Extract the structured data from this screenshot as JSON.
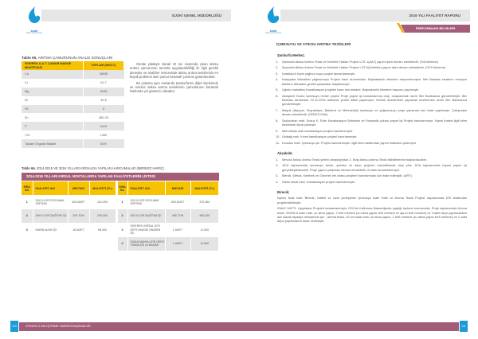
{
  "left_page": {
    "logo_text": "suski",
    "logo_subtext": "GENEL MÜDÜRLÜĞÜ",
    "header": "SUSKİ GENEL MÜDÜRLÜĞÜ",
    "table65": {
      "caption_bold": "Tablo 65.",
      "caption": "ARITMA ÇAMURUNUN ANALİZ SONUÇLARI",
      "headers": [
        "SİVEREK A.A.T. ÇAMUR MADDE MUHTEVASI",
        "TOPLAM (MG/LT)"
      ],
      "rows": [
        [
          "Ca",
          "28935"
        ],
        [
          "Cr",
          "91,7"
        ],
        [
          "Mg",
          "6105"
        ],
        [
          "Ni",
          "49,8"
        ],
        [
          "Pb",
          "0"
        ],
        [
          "Zn",
          "382,25"
        ],
        [
          "P",
          "3419"
        ],
        [
          "T-N",
          "1490"
        ],
        [
          "Toplam Organik Madde",
          "51%"
        ]
      ]
    },
    "paragraphs": [
      "Günde yaklaşık olarak 10 ton civarında çıkan atıksu arıtma çamurunun tarımda uygulanabilirliği ile ilgili gerekli deneyler ve analizler neticesinde atıksu arıtma tesislerinin en büyük problemi olan çamur bertarafı çözüme götürülecektir.",
      "Bu çalışma aynı zamanda Şanlıurfa'nın diğer ilçelerinde ve merkez atıksu arıtma tesislerinin çamurlarının bertarafı hakkında yol gösterici olacaktır."
    ],
    "table66": {
      "caption_bold": "Tablo 66.",
      "caption": "2014-2015 VE 2016 YILLARI KIRSALDA YAPILAN HARCAMALAR (MERKEZ HARİÇ)",
      "title": "2014-2016 YILLARI KIRSAL NOKTALARDA YAPILAN FAALİYETLERİN LİSTESİ",
      "headers": [
        "SIRA NO",
        "FAALİYET ADI",
        "MİKTARI",
        "MALİYETİ (TL)",
        "SIRA NO",
        "FAALİYET ADI",
        "MİKTARI",
        "MALİYETİ (TL)"
      ],
      "left_rows": [
        [
          "1",
          "SIVI KLOR DOZLAMA SİSTEMİ",
          "400 ADET",
          "151,000"
        ],
        [
          "2",
          "SIVI KLOR DAĞITIM İŞİ",
          "200 TON",
          "200,000"
        ],
        [
          "3",
          "KABİN ALIMI İŞİ",
          "36 ADET",
          "68,400"
        ]
      ],
      "right_rows": [
        [
          "1",
          "SIVI KLOR DOZLAMA SİSTEMİ",
          "503 ADET",
          "370,960"
        ],
        [
          "2",
          "SIVI KLOR DAĞITIM İŞİ",
          "480 TON",
          "480,000"
        ],
        [
          "3",
          "SİVEREK KIRSAL KÖY DEPO BAKIM ONARIM İŞİ",
          "1 ADET",
          "11,530"
        ],
        [
          "4",
          "KISAS MAHALLESİ DEPO TEMİZLİĞİ ve BAKIMI",
          "1 ADET",
          "11,800"
        ]
      ]
    },
    "footer": "STRATEJİ GELİŞTİRME DAİRESİ BAŞKANLIĞI",
    "page_number": "110"
  },
  "right_page": {
    "header": "2016 YILI FAALİYET RAPORU",
    "tab": "PERFORMANS BİLGİLERİ",
    "title": "İÇMESUYU VE ATIKSU ARITMA TESİSLERİ",
    "sections": [
      {
        "heading": "Şanlıurfa Merkez;",
        "items": [
          [
            "1-",
            "Şanlıurfa Atıksu Arıtma Tesisi ve Kolektör Hatları Projesi  LOT-1(AAT) yapım işleri devam etmektedir. (%21lerleme)"
          ],
          [
            "2-",
            "Şanlıurfa Atıksu Arıtma Tesisi ve Kolektör Hatları Projesi LOT-II(Kolektör) yapım işleri devam etmektedir. (%70 İlerleme)"
          ],
          [
            "3-",
            "Karaköprü İlçesi yağmur suyu projesi tamamlanmıştır."
          ],
          [
            "4-",
            "Karşıyaka Mahallesi yağmursuyu Projesi hazır durumdadır. Başbakanlık hibesine başvurulmuştur. İller Bankası tarafının revizyon talebine istinaden gerekli çalışmalar başlatılmıştır."
          ],
          [
            "5-",
            "Uğurlu mahallesi Kanalizasyon projeleri hazır durumdadır. Başbakanlık hibesine başvuru yapılmıştır."
          ],
          [
            "6-",
            "Akziyaret Grubu içmesuyu revize projesi Proje yapım işi tamamlanmış olup, onaylanmak üzere İller Bankasına gönderilmiştir. İller Bankası tarafından 22.11.2016 tarihinde yersel tetkik yapılmıştır. Gerekli düzeltmeler yapılarak incelenmek üzere İller Bankasına gönderilmiştir."
          ],
          [
            "7-",
            "Maşuk (Akpıyar, Seyrantepe, Batıkent ve Mehmetçik) içmesuyu ve yağmursuyu proje çalışması için ihale yapılmıştır. Çalışmalar devam etmektedir. (SEDES Müh)"
          ],
          [
            "8-",
            "Şeyhçoban mah. Susuz K. Evler Kanalizasyon Şebekesi ve Fosseptik çukuru yapım İşi Projesi hazırlanmıştır. Yapım ihalesi ilgili birim tarafından ilana çıkmıştır."
          ],
          [
            "9-",
            "Mehmetçik mah kanalizasyon projesi hazırlanmıştır."
          ],
          [
            "10-",
            "Ulubağ mah. Kısmi kanalizasyon projesi hazırlanmıştır."
          ],
          [
            "11-",
            "Konuklu mah. İçmesuyu şb. Projesi hazırlanmıştır. İlgili birim tarafından yapım ihalesine çıkılmıştır."
          ]
        ]
      },
      {
        "heading": "Akçakale;",
        "items": [
          [
            "1-",
            "Mevcut Atıksu  Arıtma Tesisi yeterli olmadığından 2. Etap Atıksu Arıtma Tesisi fizibilitelerine başlanılacaktır."
          ],
          [
            "2-",
            "JICA kapsamında içmesuyu temin, şebeke ve depo projeleri hazırlatılacak olup yine JICA kapsamında inşaat yapım işi gerçekleştirilecektir. Proje yapım çalışması devam etmektedir. A etabı tamamlanmıştır."
          ],
          [
            "3-",
            "Menzil, Şefkat, Kelebek ve Günerek mh atıksu projeleri hazırlanması için ihale edilmiştir. (ART)"
          ],
          [
            "4-",
            "Dibek kesal mah. Kanalizasyon projesi hazırlanmıştır."
          ]
        ]
      }
    ],
    "birecik": {
      "heading": "Birecik;",
      "paragraphs": [
        "İlçenin İsale hattı 'Birecik- Halfeti ve civar yerleşimler içmesuyu isale Hattı ve Arıtma Tesisi Projesi' kapsamında DSİ tarafından projelendirilmiştir.",
        "İSALE HATTI: Uygulama Projeleri tamamlanmıştır. DSİ'nin Kalkınma Bakanlığında yaptığı toplantı sonrasında; Proje kapsamında Arıtma tesisi, 33258 m isale hattı, su alma yapısı, 2 terfi merkezi (su alma yapısı terfi merkezi ve ayrıcı terfi merkezi) ve 3 adet depo yapılacakken acil olarak faydaya dönüşmesi için ; arıtma tesisi, 10 km isale hattı, su alma yapısı, 1 terfi merkezi (su alma yapısı terfi merkezi) ve 2 adet depo yapılmasına karar verilmiştir."
      ]
    },
    "page_number": "111"
  },
  "colors": {
    "accent_purple": "#a35d78",
    "header_yellow": "#f7c300",
    "page_blue": "#1a9ad6",
    "header_gray": "#e6e6e6"
  }
}
